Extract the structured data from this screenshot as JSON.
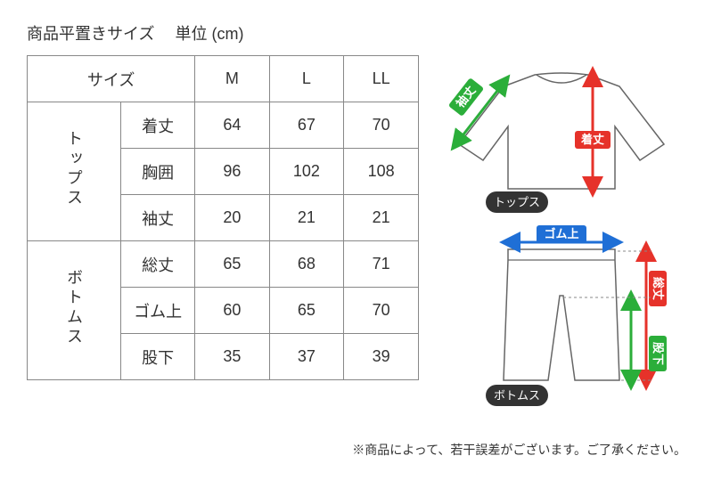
{
  "title": {
    "main": "商品平置きサイズ",
    "unit": "単位 (cm)"
  },
  "table": {
    "sizeHeader": "サイズ",
    "sizes": [
      "M",
      "L",
      "LL"
    ],
    "groups": [
      {
        "name": "トップス",
        "rows": [
          {
            "label": "着丈",
            "vals": [
              "64",
              "67",
              "70"
            ]
          },
          {
            "label": "胸囲",
            "vals": [
              "96",
              "102",
              "108"
            ]
          },
          {
            "label": "袖丈",
            "vals": [
              "20",
              "21",
              "21"
            ]
          }
        ]
      },
      {
        "name": "ボトムス",
        "rows": [
          {
            "label": "総丈",
            "vals": [
              "65",
              "68",
              "71"
            ]
          },
          {
            "label": "ゴム上",
            "vals": [
              "60",
              "65",
              "70"
            ]
          },
          {
            "label": "股下",
            "vals": [
              "35",
              "37",
              "39"
            ]
          }
        ]
      }
    ]
  },
  "diagram": {
    "topsLabel": "トップス",
    "bottomsLabel": "ボトムス",
    "measurements": {
      "sleeve": {
        "text": "袖丈",
        "color": "#2bae3a"
      },
      "length": {
        "text": "着丈",
        "color": "#e6322a"
      },
      "waist": {
        "text": "ゴム上",
        "color": "#1f6fd6"
      },
      "total": {
        "text": "総丈",
        "color": "#e6322a"
      },
      "inseam": {
        "text": "股下",
        "color": "#2bae3a"
      }
    }
  },
  "note": "※商品によって、若干誤差がございます。ご了承ください。"
}
